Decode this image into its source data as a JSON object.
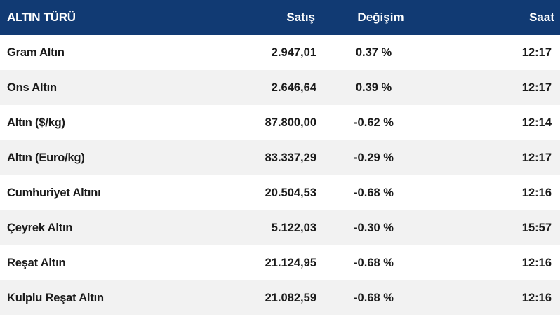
{
  "table": {
    "headers": {
      "name": "ALTIN TÜRÜ",
      "price": "Satış",
      "change": "Değişim",
      "time": "Saat"
    },
    "rows": [
      {
        "name": "Gram Altın",
        "price": "2.947,01",
        "change": "0.37 %",
        "direction": "up",
        "time": "12:17"
      },
      {
        "name": "Ons Altın",
        "price": "2.646,64",
        "change": "0.39 %",
        "direction": "up",
        "time": "12:17"
      },
      {
        "name": "Altın ($/kg)",
        "price": "87.800,00",
        "change": "-0.62 %",
        "direction": "down",
        "time": "12:14"
      },
      {
        "name": "Altın (Euro/kg)",
        "price": "83.337,29",
        "change": "-0.29 %",
        "direction": "down",
        "time": "12:17"
      },
      {
        "name": "Cumhuriyet Altını",
        "price": "20.504,53",
        "change": "-0.68 %",
        "direction": "down",
        "time": "12:16"
      },
      {
        "name": "Çeyrek Altın",
        "price": "5.122,03",
        "change": "-0.30 %",
        "direction": "down",
        "time": "15:57"
      },
      {
        "name": "Reşat Altın",
        "price": "21.124,95",
        "change": "-0.68 %",
        "direction": "down",
        "time": "12:16"
      },
      {
        "name": "Kulplu Reşat Altın",
        "price": "21.082,59",
        "change": "-0.68 %",
        "direction": "down",
        "time": "12:16"
      }
    ],
    "colors": {
      "header_bg": "#113a73",
      "up": "#1b8a2f",
      "down": "#d4222a"
    }
  }
}
